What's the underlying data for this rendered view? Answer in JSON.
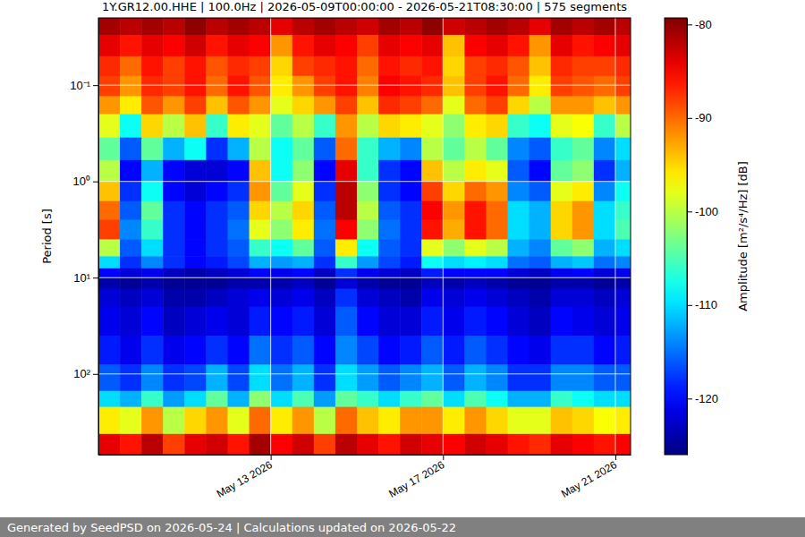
{
  "chart_data": {
    "type": "heatmap",
    "title": "1Y.GR12.00.HHE | 100.0Hz | 2026-05-09T00:00:00 - 2026-05-21T08:30:00 | 575 segments",
    "ylabel": "Period [s]",
    "footer": "Generated by SeedPSD on 2026-05-24 | Calculations updated on 2026-05-22",
    "log": "y",
    "grid": true,
    "xlim": [
      "2026-05-09T00:00:00",
      "2026-05-21T08:30:00"
    ],
    "xticks": [
      {
        "value": "2026-05-13T00:00:00",
        "label": "May 13 2026"
      },
      {
        "value": "2026-05-17T00:00:00",
        "label": "May 17 2026"
      },
      {
        "value": "2026-05-21T00:00:00",
        "label": "May 21 2026"
      }
    ],
    "ylim": [
      0.02,
      690
    ],
    "yticks": [
      {
        "value": 0.1,
        "label": "10⁻¹"
      },
      {
        "value": 1,
        "label": "10⁰"
      },
      {
        "value": 10,
        "label": "10¹"
      },
      {
        "value": 100,
        "label": "10²"
      }
    ],
    "colorbar": {
      "label": "Amplitude [m²/s⁴/Hz] [dB]",
      "range": [
        -126,
        -79.3
      ],
      "ticks": [
        -80,
        -90,
        -100,
        -110,
        -120
      ]
    },
    "x_edges": [
      "2026-05-09T00:00:00",
      "2026-05-09T12:00:00",
      "2026-05-10T00:00:00",
      "2026-05-10T12:00:00",
      "2026-05-11T00:00:00",
      "2026-05-11T12:00:00",
      "2026-05-12T00:00:00",
      "2026-05-12T12:00:00",
      "2026-05-13T00:00:00",
      "2026-05-13T12:00:00",
      "2026-05-14T00:00:00",
      "2026-05-14T12:00:00",
      "2026-05-15T00:00:00",
      "2026-05-15T12:00:00",
      "2026-05-16T00:00:00",
      "2026-05-16T12:00:00",
      "2026-05-17T00:00:00",
      "2026-05-17T12:00:00",
      "2026-05-18T00:00:00",
      "2026-05-18T12:00:00",
      "2026-05-19T00:00:00",
      "2026-05-19T12:00:00",
      "2026-05-20T00:00:00",
      "2026-05-20T12:00:00",
      "2026-05-21T00:00:00",
      "2026-05-21T08:30:00"
    ],
    "y_edges": [
      0.02,
      0.03,
      0.05,
      0.08,
      0.13,
      0.2,
      0.35,
      0.6,
      1,
      1.6,
      2.5,
      4,
      6,
      8,
      10,
      13,
      20,
      40,
      80,
      150,
      220,
      420,
      690
    ],
    "values": [
      [
        -81,
        -82,
        -81,
        -82,
        -80,
        -82,
        -81,
        -82,
        -84,
        -82,
        -81,
        -82,
        -83,
        -81,
        -82,
        -80,
        -83,
        -82,
        -81,
        -82,
        -84,
        -81,
        -82,
        -81,
        -82
      ],
      [
        -84,
        -86,
        -84,
        -85,
        -83,
        -86,
        -84,
        -85,
        -92,
        -86,
        -84,
        -85,
        -88,
        -84,
        -85,
        -84,
        -94,
        -85,
        -84,
        -86,
        -92,
        -84,
        -86,
        -85,
        -84
      ],
      [
        -87,
        -90,
        -86,
        -88,
        -86,
        -89,
        -87,
        -88,
        -95,
        -88,
        -87,
        -86,
        -90,
        -86,
        -87,
        -86,
        -95,
        -88,
        -87,
        -89,
        -94,
        -87,
        -88,
        -88,
        -87
      ],
      [
        -88,
        -92,
        -87,
        -88,
        -86,
        -90,
        -86,
        -89,
        -96,
        -92,
        -88,
        -86,
        -91,
        -85,
        -86,
        -87,
        -94,
        -88,
        -86,
        -90,
        -96,
        -88,
        -89,
        -90,
        -88
      ],
      [
        -92,
        -96,
        -89,
        -92,
        -88,
        -94,
        -89,
        -92,
        -98,
        -95,
        -92,
        -88,
        -94,
        -87,
        -88,
        -90,
        -98,
        -90,
        -88,
        -95,
        -100,
        -92,
        -92,
        -94,
        -92
      ],
      [
        -98,
        -108,
        -95,
        -100,
        -94,
        -106,
        -96,
        -98,
        -104,
        -100,
        -106,
        -92,
        -100,
        -95,
        -96,
        -98,
        -102,
        -96,
        -95,
        -106,
        -108,
        -98,
        -97,
        -106,
        -100
      ],
      [
        -104,
        -116,
        -104,
        -112,
        -108,
        -118,
        -112,
        -100,
        -108,
        -104,
        -116,
        -90,
        -106,
        -112,
        -114,
        -100,
        -104,
        -100,
        -104,
        -114,
        -116,
        -106,
        -104,
        -114,
        -110
      ],
      [
        -100,
        -120,
        -112,
        -120,
        -122,
        -122,
        -120,
        -94,
        -108,
        -102,
        -120,
        -84,
        -106,
        -118,
        -120,
        -94,
        -100,
        -96,
        -98,
        -116,
        -120,
        -104,
        -102,
        -118,
        -112
      ],
      [
        -94,
        -118,
        -108,
        -120,
        -122,
        -120,
        -118,
        -92,
        -104,
        -98,
        -118,
        -82,
        -102,
        -118,
        -120,
        -88,
        -95,
        -90,
        -92,
        -114,
        -116,
        -98,
        -96,
        -114,
        -108
      ],
      [
        -90,
        -116,
        -104,
        -118,
        -120,
        -118,
        -116,
        -95,
        -100,
        -95,
        -116,
        -82,
        -100,
        -116,
        -118,
        -85,
        -92,
        -86,
        -90,
        -110,
        -112,
        -95,
        -92,
        -110,
        -106
      ],
      [
        -88,
        -114,
        -106,
        -118,
        -120,
        -118,
        -115,
        -98,
        -102,
        -96,
        -115,
        -85,
        -102,
        -115,
        -118,
        -86,
        -93,
        -86,
        -90,
        -110,
        -112,
        -95,
        -92,
        -110,
        -105
      ],
      [
        -100,
        -116,
        -110,
        -118,
        -120,
        -118,
        -116,
        -106,
        -108,
        -104,
        -116,
        -96,
        -108,
        -116,
        -118,
        -98,
        -102,
        -98,
        -100,
        -112,
        -114,
        -104,
        -102,
        -112,
        -110
      ],
      [
        -110,
        -118,
        -114,
        -118,
        -120,
        -119,
        -117,
        -112,
        -113,
        -112,
        -118,
        -106,
        -113,
        -117,
        -119,
        -108,
        -110,
        -109,
        -110,
        -115,
        -116,
        -112,
        -111,
        -115,
        -114
      ],
      [
        -120,
        -122,
        -121,
        -123,
        -124,
        -123,
        -122,
        -120,
        -121,
        -120,
        -123,
        -118,
        -121,
        -122,
        -123,
        -119,
        -120,
        -120,
        -120,
        -122,
        -123,
        -121,
        -120,
        -122,
        -121
      ],
      [
        -124,
        -125,
        -124,
        -125,
        -125,
        -125,
        -124,
        -124,
        -124,
        -123,
        -125,
        -122,
        -124,
        -125,
        -125,
        -123,
        -124,
        -123,
        -124,
        -125,
        -125,
        -124,
        -124,
        -125,
        -124
      ],
      [
        -122,
        -123,
        -122,
        -124,
        -124,
        -123,
        -122,
        -121,
        -122,
        -121,
        -123,
        -118,
        -122,
        -123,
        -124,
        -121,
        -122,
        -121,
        -122,
        -123,
        -124,
        -122,
        -122,
        -123,
        -122
      ],
      [
        -121,
        -122,
        -120,
        -123,
        -122,
        -121,
        -122,
        -119,
        -120,
        -119,
        -122,
        -116,
        -120,
        -122,
        -122,
        -119,
        -121,
        -119,
        -120,
        -122,
        -123,
        -120,
        -121,
        -122,
        -121
      ],
      [
        -119,
        -121,
        -118,
        -121,
        -120,
        -118,
        -120,
        -115,
        -118,
        -116,
        -120,
        -114,
        -117,
        -120,
        -119,
        -116,
        -119,
        -116,
        -118,
        -120,
        -121,
        -118,
        -118,
        -120,
        -119
      ],
      [
        -116,
        -118,
        -114,
        -118,
        -117,
        -112,
        -117,
        -110,
        -115,
        -112,
        -118,
        -110,
        -113,
        -116,
        -114,
        -112,
        -116,
        -112,
        -114,
        -118,
        -118,
        -114,
        -114,
        -116,
        -116
      ],
      [
        -110,
        -112,
        -106,
        -113,
        -110,
        -104,
        -112,
        -102,
        -110,
        -105,
        -113,
        -104,
        -106,
        -110,
        -106,
        -104,
        -110,
        -105,
        -108,
        -112,
        -112,
        -106,
        -108,
        -110,
        -110
      ],
      [
        -96,
        -98,
        -92,
        -100,
        -95,
        -92,
        -98,
        -90,
        -96,
        -92,
        -100,
        -90,
        -94,
        -96,
        -92,
        -92,
        -96,
        -92,
        -95,
        -98,
        -98,
        -94,
        -95,
        -97,
        -96
      ],
      [
        -84,
        -86,
        -82,
        -88,
        -84,
        -83,
        -86,
        -81,
        -85,
        -83,
        -88,
        -82,
        -84,
        -86,
        -83,
        -84,
        -85,
        -83,
        -84,
        -86,
        -87,
        -84,
        -85,
        -86,
        -85
      ]
    ]
  }
}
